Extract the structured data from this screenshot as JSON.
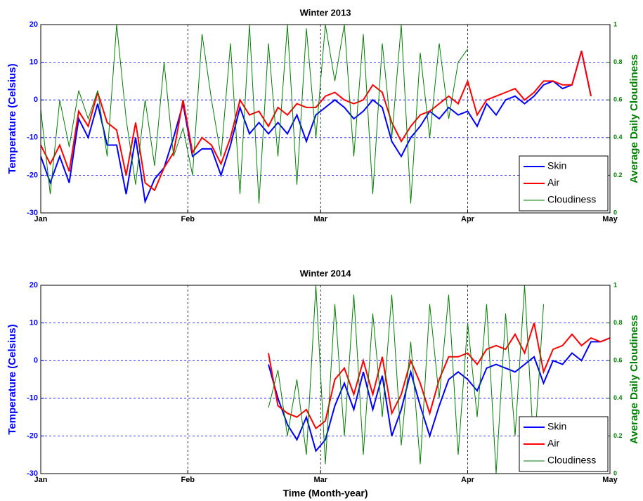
{
  "chart_data": [
    {
      "type": "line",
      "title": "Winter 2013",
      "ylabel": "Temperature (Celsius)",
      "y2label": "Average Daily Cloudiness",
      "xlim": [
        0,
        120
      ],
      "xticks": [
        {
          "value": 0,
          "label": "Jan"
        },
        {
          "value": 31,
          "label": "Feb"
        },
        {
          "value": 59,
          "label": "Mar"
        },
        {
          "value": 90,
          "label": "Apr"
        },
        {
          "value": 120,
          "label": "May"
        }
      ],
      "ylim": [
        -30,
        20
      ],
      "yticks": [
        -30,
        -20,
        -10,
        0,
        10,
        20
      ],
      "y2lim": [
        0,
        1
      ],
      "y2ticks": [
        0,
        0.2,
        0.4,
        0.6,
        0.8,
        1
      ],
      "grid": true,
      "legend": "lower right",
      "series": [
        {
          "name": "Skin",
          "color": "#0000ff",
          "x": [
            0,
            2,
            4,
            6,
            8,
            10,
            12,
            14,
            16,
            18,
            20,
            22,
            24,
            26,
            28,
            30,
            32,
            34,
            36,
            38,
            40,
            42,
            44,
            46,
            48,
            50,
            52,
            54,
            56,
            58,
            60,
            62,
            64,
            66,
            68,
            70,
            72,
            74,
            76,
            78,
            80,
            82,
            84,
            86,
            88,
            90,
            92,
            94,
            96,
            98,
            100,
            102,
            104,
            106,
            108,
            110,
            112,
            114,
            116
          ],
          "values": [
            -15,
            -22,
            -15,
            -22,
            -5,
            -10,
            -1,
            -12,
            -12,
            -25,
            -10,
            -27,
            -21,
            -18,
            -10,
            -1,
            -15,
            -13,
            -13,
            -20,
            -12,
            -2,
            -9,
            -6,
            -9,
            -6,
            -9,
            -4,
            -11,
            -4,
            -2,
            0,
            -2,
            -5,
            -3,
            0,
            -2,
            -11,
            -15,
            -10,
            -7,
            -3,
            -5,
            -2,
            -4,
            -3,
            -7,
            -1,
            -4,
            0,
            1,
            -1,
            1,
            4,
            5,
            3,
            4,
            13,
            1
          ]
        },
        {
          "name": "Air",
          "color": "#ff0000",
          "x": [
            0,
            2,
            4,
            6,
            8,
            10,
            12,
            14,
            16,
            18,
            20,
            22,
            24,
            26,
            28,
            30,
            32,
            34,
            36,
            38,
            40,
            42,
            44,
            46,
            48,
            50,
            52,
            54,
            56,
            58,
            60,
            62,
            64,
            66,
            68,
            70,
            72,
            74,
            76,
            78,
            80,
            82,
            84,
            86,
            88,
            90,
            92,
            94,
            96,
            98,
            100,
            102,
            104,
            106,
            108,
            110,
            112,
            114,
            116
          ],
          "values": [
            -12,
            -17,
            -12,
            -19,
            -3,
            -7,
            2,
            -6,
            -8,
            -20,
            -6,
            -22,
            -24,
            -18,
            -14,
            0,
            -14,
            -10,
            -12,
            -17,
            -10,
            0,
            -4,
            -3,
            -7,
            -2,
            -4,
            -1,
            -2,
            -2,
            1,
            2,
            0,
            -1,
            0,
            4,
            2,
            -6,
            -11,
            -7,
            -4,
            -3,
            -1,
            1,
            -1,
            5,
            -4,
            0,
            1,
            2,
            3,
            0,
            2,
            5,
            5,
            4,
            4,
            13,
            1
          ]
        },
        {
          "name": "Cloudiness",
          "color": "#008000",
          "axis": "y2",
          "x": [
            0,
            2,
            4,
            6,
            8,
            10,
            12,
            14,
            16,
            18,
            20,
            22,
            24,
            26,
            28,
            30,
            32,
            34,
            36,
            38,
            40,
            42,
            44,
            46,
            48,
            50,
            52,
            54,
            56,
            58,
            60,
            62,
            64,
            66,
            68,
            70,
            72,
            74,
            76,
            78,
            80,
            82,
            84,
            86,
            88,
            90
          ],
          "values": [
            0.55,
            0.1,
            0.6,
            0.35,
            0.65,
            0.5,
            0.65,
            0.3,
            1,
            0.5,
            0.15,
            0.6,
            0.25,
            0.8,
            0.3,
            0.45,
            0.2,
            0.95,
            0.6,
            0.3,
            0.9,
            0.1,
            1,
            0.05,
            0.9,
            0.3,
            1,
            0.15,
            0.98,
            0.4,
            1,
            0.7,
            1,
            0.3,
            0.95,
            0.1,
            0.9,
            0.4,
            1,
            0.05,
            0.85,
            0.4,
            0.9,
            0.5,
            0.8,
            0.87
          ]
        }
      ]
    },
    {
      "type": "line",
      "title": "Winter 2014",
      "ylabel": "Temperature (Celsius)",
      "y2label": "Average Daily Cloudiness",
      "xlabel": "Time (Month-year)",
      "xlim": [
        0,
        120
      ],
      "xticks": [
        {
          "value": 0,
          "label": "Jan"
        },
        {
          "value": 31,
          "label": "Feb"
        },
        {
          "value": 59,
          "label": "Mar"
        },
        {
          "value": 90,
          "label": "Apr"
        },
        {
          "value": 120,
          "label": "May"
        }
      ],
      "ylim": [
        -30,
        20
      ],
      "yticks": [
        -30,
        -20,
        -10,
        0,
        10,
        20
      ],
      "y2lim": [
        0,
        1
      ],
      "y2ticks": [
        0,
        0.2,
        0.4,
        0.6,
        0.8,
        1
      ],
      "grid": true,
      "legend": "lower right",
      "series": [
        {
          "name": "Skin",
          "color": "#0000ff",
          "x": [
            48,
            50,
            52,
            54,
            56,
            58,
            60,
            62,
            64,
            66,
            68,
            70,
            72,
            74,
            76,
            78,
            80,
            82,
            84,
            86,
            88,
            90,
            92,
            94,
            96,
            98,
            100,
            102,
            104,
            106,
            108,
            110,
            112,
            114,
            116,
            118,
            120
          ],
          "values": [
            -1,
            -10,
            -17,
            -21,
            -15,
            -24,
            -21,
            -12,
            -6,
            -13,
            -3,
            -13,
            -4,
            -20,
            -13,
            -3,
            -12,
            -20,
            -12,
            -5,
            -3,
            -5,
            -8,
            -2,
            -1,
            -2,
            -3,
            -1,
            1,
            -6,
            0,
            -1,
            2,
            0,
            5,
            5,
            6
          ]
        },
        {
          "name": "Air",
          "color": "#ff0000",
          "x": [
            48,
            50,
            52,
            54,
            56,
            58,
            60,
            62,
            64,
            66,
            68,
            70,
            72,
            74,
            76,
            78,
            80,
            82,
            84,
            86,
            88,
            90,
            92,
            94,
            96,
            98,
            100,
            102,
            104,
            106,
            108,
            110,
            112,
            114,
            116,
            118,
            120
          ],
          "values": [
            2,
            -12,
            -14,
            -15,
            -13,
            -18,
            -16,
            -5,
            -2,
            -9,
            0,
            -9,
            1,
            -14,
            -9,
            0,
            -6,
            -14,
            -5,
            1,
            1,
            2,
            -1,
            3,
            4,
            3,
            7,
            2,
            10,
            -3,
            3,
            4,
            7,
            4,
            6,
            5,
            6
          ]
        },
        {
          "name": "Cloudiness",
          "color": "#008000",
          "axis": "y2",
          "x": [
            48,
            50,
            52,
            54,
            56,
            58,
            60,
            62,
            64,
            66,
            68,
            70,
            72,
            74,
            76,
            78,
            80,
            82,
            84,
            86,
            88,
            90,
            92,
            94,
            96,
            98,
            100,
            102,
            104,
            106
          ],
          "values": [
            0.35,
            0.55,
            0.2,
            0.5,
            0.1,
            1,
            0.05,
            0.9,
            0.2,
            0.95,
            0.1,
            0.85,
            0.3,
            0.95,
            0.15,
            0.7,
            0.05,
            0.9,
            0.4,
            0.95,
            0.1,
            0.8,
            0.3,
            0.9,
            0,
            0.85,
            0.2,
            1,
            0.1,
            0.9
          ]
        }
      ]
    }
  ]
}
